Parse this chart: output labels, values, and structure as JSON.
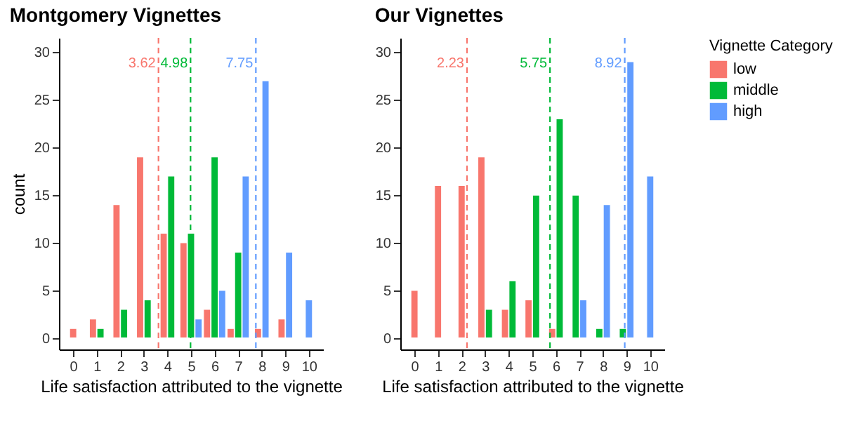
{
  "chart_data": [
    {
      "type": "bar",
      "title": "Montgomery Vignettes",
      "xlabel": "Life satisfaction attributed to the vignette",
      "ylabel": "count",
      "x": [
        0,
        1,
        2,
        3,
        4,
        5,
        6,
        7,
        8,
        9,
        10
      ],
      "series": [
        {
          "name": "low",
          "color": "#f8766d",
          "values": [
            1,
            2,
            14,
            19,
            11,
            10,
            3,
            1,
            1,
            2,
            null
          ]
        },
        {
          "name": "middle",
          "color": "#00ba38",
          "values": [
            null,
            1,
            3,
            4,
            17,
            11,
            19,
            9,
            null,
            null,
            null
          ]
        },
        {
          "name": "high",
          "color": "#619cff",
          "values": [
            null,
            null,
            null,
            null,
            null,
            2,
            5,
            17,
            27,
            9,
            4
          ]
        }
      ],
      "xlim": [
        -0.6,
        10.6
      ],
      "ylim": [
        -1.2,
        31.5
      ],
      "xticks": [
        0,
        1,
        2,
        3,
        4,
        5,
        6,
        7,
        8,
        9,
        10
      ],
      "yticks": [
        0,
        5,
        10,
        15,
        20,
        25,
        30
      ],
      "ref_lines": [
        {
          "axis": "x",
          "value": 3.62,
          "label": "3.62",
          "color": "#f8766d",
          "line_style": "dashed"
        },
        {
          "axis": "x",
          "value": 4.98,
          "label": "4.98",
          "color": "#00ba38",
          "line_style": "dashed"
        },
        {
          "axis": "x",
          "value": 7.75,
          "label": "7.75",
          "color": "#619cff",
          "line_style": "dashed"
        }
      ],
      "grid": false,
      "legend": "right"
    },
    {
      "type": "bar",
      "title": "Our Vignettes",
      "xlabel": "Life satisfaction attributed to the vignette",
      "legend_title": "Vignette Category",
      "x": [
        0,
        1,
        2,
        3,
        4,
        5,
        6,
        7,
        8,
        9,
        10
      ],
      "series": [
        {
          "name": "low",
          "color": "#f8766d",
          "values": [
            5,
            16,
            16,
            19,
            3,
            4,
            1,
            null,
            null,
            null,
            null
          ]
        },
        {
          "name": "middle",
          "color": "#00ba38",
          "values": [
            null,
            null,
            null,
            3,
            6,
            15,
            23,
            15,
            1,
            1,
            null
          ]
        },
        {
          "name": "high",
          "color": "#619cff",
          "values": [
            null,
            null,
            null,
            null,
            null,
            null,
            null,
            4,
            14,
            29,
            17
          ]
        }
      ],
      "xlim": [
        -0.6,
        10.6
      ],
      "ylim": [
        -1.2,
        31.5
      ],
      "xticks": [
        0,
        1,
        2,
        3,
        4,
        5,
        6,
        7,
        8,
        9,
        10
      ],
      "yticks": [
        0,
        5,
        10,
        15,
        20,
        25,
        30
      ],
      "ref_lines": [
        {
          "axis": "x",
          "value": 2.23,
          "label": "2.23",
          "color": "#f8766d",
          "line_style": "dashed"
        },
        {
          "axis": "x",
          "value": 5.75,
          "label": "5.75",
          "color": "#00ba38",
          "line_style": "dashed"
        },
        {
          "axis": "x",
          "value": 8.92,
          "label": "8.92",
          "color": "#619cff",
          "line_style": "dashed"
        }
      ],
      "grid": false,
      "legend": "right"
    }
  ]
}
